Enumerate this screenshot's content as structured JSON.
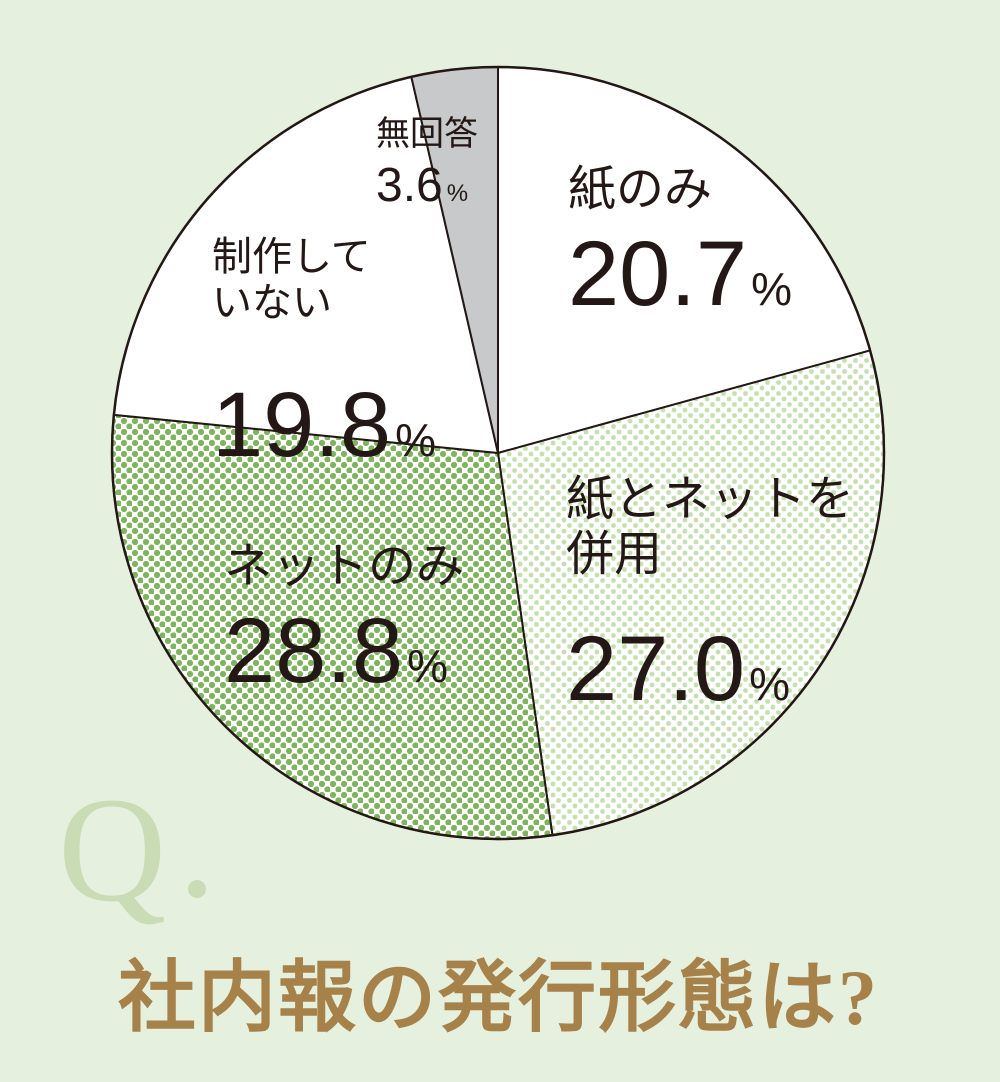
{
  "chart_data": {
    "type": "pie",
    "title": "社内報の発行形態は?",
    "slices": [
      {
        "label_lines": [
          "紙のみ"
        ],
        "value": 20.7,
        "value_text": "20.7",
        "unit": "%",
        "fill": "white"
      },
      {
        "label_lines": [
          "紙とネットを",
          "併用"
        ],
        "value": 27.0,
        "value_text": "27.0",
        "unit": "%",
        "fill": "dots-light"
      },
      {
        "label_lines": [
          "ネットのみ"
        ],
        "value": 28.8,
        "value_text": "28.8",
        "unit": "%",
        "fill": "dots-dense"
      },
      {
        "label_lines": [
          "制作して",
          "いない"
        ],
        "value": 19.8,
        "value_text": "19.8",
        "unit": "%",
        "fill": "white"
      },
      {
        "label_lines": [
          "無回答"
        ],
        "value": 3.6,
        "value_text": "3.6",
        "unit": "%",
        "fill": "gray"
      }
    ]
  },
  "question_mark": "Q",
  "question": "社内報の発行形態は?",
  "colors": {
    "background": "#e6f0de",
    "dot_green": "#7fb45e",
    "gray": "#c8c9ca",
    "text": "#231815",
    "question_text": "#a6824a",
    "q_letter": "#c9dcb6"
  }
}
